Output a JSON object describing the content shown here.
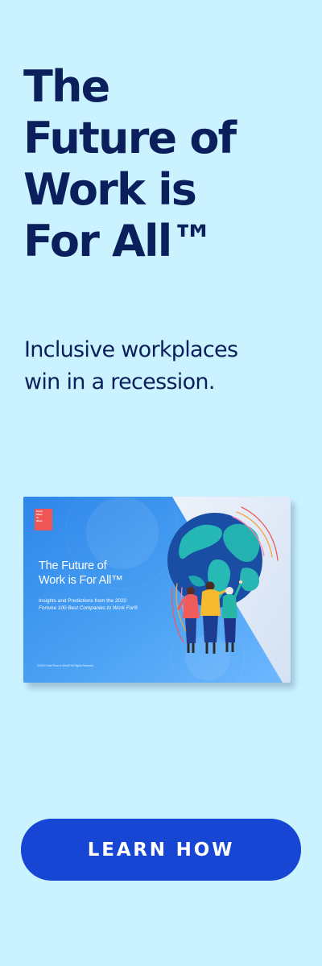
{
  "headline": {
    "lines": [
      "The",
      "Future of",
      "Work is",
      "For All™"
    ]
  },
  "subheadline": {
    "lines": [
      "Inclusive workplaces",
      "win in a recession."
    ]
  },
  "report": {
    "logo_lines": [
      "Great",
      "Place",
      "To",
      "Work."
    ],
    "title_lines": [
      "The Future of",
      "Work is For All™"
    ],
    "subtitle_lines": [
      "Insights and Predictions from the 2020",
      "Fortune 100 Best Companies to Work For®"
    ],
    "footer": "©2020 Great Place to Work® All Rights Reserved"
  },
  "cta": {
    "label": "LEARN HOW"
  },
  "colors": {
    "background": "#cbf3ff",
    "headline": "#0a1f5c",
    "button": "#1846d4",
    "report_cover": "#3f94ec",
    "logo": "#ef5656"
  }
}
